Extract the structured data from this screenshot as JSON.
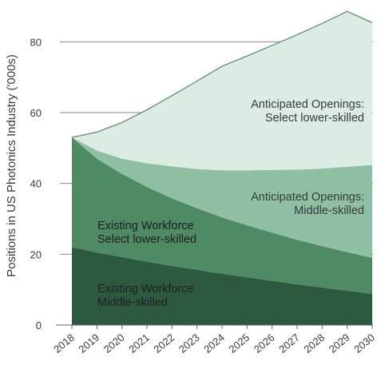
{
  "chart_data": {
    "type": "area",
    "stacked": true,
    "x": [
      2018,
      2019,
      2020,
      2021,
      2022,
      2023,
      2024,
      2025,
      2026,
      2027,
      2028,
      2029,
      2030
    ],
    "x_tick_labels": [
      "2018",
      "2019",
      "2020",
      "2021",
      "2022",
      "2023",
      "2024",
      "2025",
      "2026",
      "2027",
      "2028",
      "2029",
      "2030"
    ],
    "ylabel": "Positions in US Photonics Industry ('000s)",
    "ylim": [
      0,
      90
    ],
    "y_ticks": [
      0,
      20,
      40,
      60,
      80
    ],
    "grid": "horizontal",
    "legend": "none",
    "series": [
      {
        "name_lines": [
          "Existing Workforce",
          "Middle-skilled"
        ],
        "values": [
          22,
          20.5,
          19.2,
          17.9,
          16.7,
          15.6,
          14.5,
          13.5,
          12.5,
          11.5,
          10.6,
          9.7,
          8.8
        ],
        "color": "#2d5a3f"
      },
      {
        "name_lines": [
          "Existing Workforce",
          "Select lower-skilled"
        ],
        "values": [
          31,
          26.5,
          23.5,
          21.1,
          19.1,
          17.4,
          15.9,
          14.7,
          13.6,
          12.6,
          11.7,
          10.9,
          10.2
        ],
        "color": "#4e8a63"
      },
      {
        "name_lines": [
          "Anticipated Openings:",
          "Middle-skilled"
        ],
        "values": [
          0,
          2.3,
          4.3,
          6.7,
          9.0,
          11.1,
          13.3,
          15.5,
          17.7,
          19.8,
          21.9,
          24.1,
          26.2
        ],
        "color": "#8fc0a3"
      },
      {
        "name_lines": [
          "Anticipated Openings:",
          "Select lower-skilled"
        ],
        "values": [
          0,
          5.2,
          10.2,
          15.1,
          20.0,
          24.8,
          29.4,
          32.3,
          35.2,
          38.1,
          41.0,
          43.9,
          40.2
        ],
        "color": "#dcece2"
      }
    ],
    "top_line_color": "#5c8f70"
  }
}
